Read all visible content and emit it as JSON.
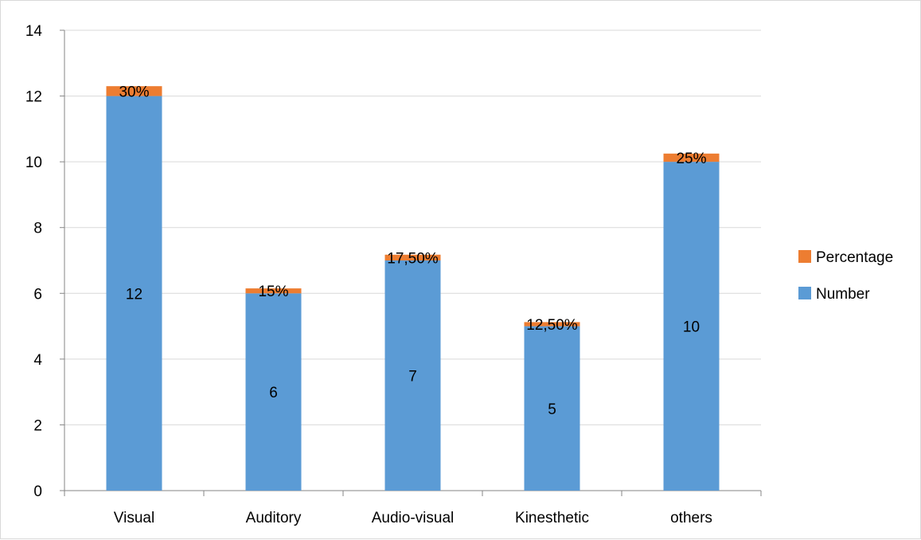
{
  "chart_data": {
    "type": "bar",
    "stacked": true,
    "categories": [
      "Visual",
      "Auditory",
      "Audio-visual",
      "Kinesthetic",
      "others"
    ],
    "series": [
      {
        "name": "Number",
        "values": [
          12,
          6,
          7,
          5,
          10
        ],
        "labels": [
          "12",
          "6",
          "7",
          "5",
          "10"
        ],
        "color": "#5b9bd5"
      },
      {
        "name": "Percentage",
        "values": [
          0.3,
          0.15,
          0.175,
          0.125,
          0.25
        ],
        "labels": [
          "30%",
          "15%",
          "17,50%",
          "12,50%",
          "25%"
        ],
        "color": "#ed7d31"
      }
    ],
    "title": "",
    "xlabel": "",
    "ylabel": "",
    "ylim": [
      0,
      14
    ],
    "yticks": [
      "0",
      "2",
      "4",
      "6",
      "8",
      "10",
      "12",
      "14"
    ],
    "grid": true,
    "legend": {
      "position": "right",
      "entries": [
        "Percentage",
        "Number"
      ]
    }
  }
}
